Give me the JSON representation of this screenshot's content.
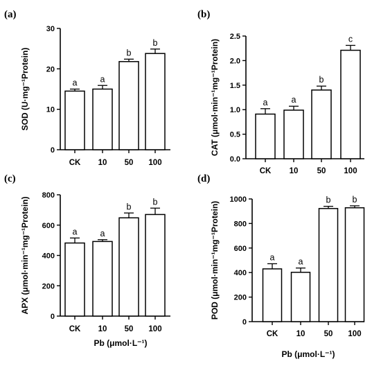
{
  "figure": {
    "xlabel": "Pb (μmol·L⁻¹)"
  },
  "chart_data": [
    {
      "panel": "(a)",
      "type": "bar",
      "categories": [
        "CK",
        "10",
        "50",
        "100"
      ],
      "values": [
        14.5,
        15.0,
        21.8,
        23.8
      ],
      "errors": [
        0.5,
        0.9,
        0.6,
        1.1
      ],
      "significance": [
        "a",
        "a",
        "b",
        "b"
      ],
      "ylabel": "SOD (U·mg⁻¹Protein)",
      "ylim": [
        0,
        30
      ],
      "yticks": [
        0,
        10,
        20,
        30
      ],
      "ytick_labels": [
        "0",
        "10",
        "20",
        "30"
      ]
    },
    {
      "panel": "(b)",
      "type": "bar",
      "categories": [
        "CK",
        "10",
        "50",
        "100"
      ],
      "values": [
        0.91,
        0.99,
        1.4,
        2.21
      ],
      "errors": [
        0.11,
        0.08,
        0.08,
        0.1
      ],
      "significance": [
        "a",
        "a",
        "b",
        "c"
      ],
      "ylabel": "CAT (μmol·min⁻¹mg⁻¹Protein)",
      "ylim": [
        0,
        2.5
      ],
      "yticks": [
        0,
        0.5,
        1.0,
        1.5,
        2.0,
        2.5
      ],
      "ytick_labels": [
        "0.0",
        "0.5",
        "1.0",
        "1.5",
        "2.0",
        "2.5"
      ]
    },
    {
      "panel": "(c)",
      "type": "bar",
      "categories": [
        "CK",
        "10",
        "50",
        "100"
      ],
      "values": [
        482,
        492,
        648,
        670
      ],
      "errors": [
        33,
        12,
        32,
        42
      ],
      "significance": [
        "a",
        "a",
        "b",
        "b"
      ],
      "ylabel": "APX (μmol·min⁻¹mg⁻¹Protein)",
      "ylim": [
        0,
        800
      ],
      "yticks": [
        0,
        200,
        400,
        600,
        800
      ],
      "ytick_labels": [
        "0",
        "200",
        "400",
        "600",
        "800"
      ]
    },
    {
      "panel": "(d)",
      "type": "bar",
      "categories": [
        "CK",
        "10",
        "50",
        "100"
      ],
      "values": [
        430,
        402,
        922,
        928
      ],
      "errors": [
        42,
        35,
        18,
        16
      ],
      "significance": [
        "a",
        "a",
        "b",
        "b"
      ],
      "ylabel": "POD (μmol·min⁻¹mg⁻¹Protein)",
      "ylim": [
        0,
        1000
      ],
      "yticks": [
        0,
        200,
        400,
        600,
        800,
        1000
      ],
      "ytick_labels": [
        "0",
        "200",
        "400",
        "600",
        "800",
        "1000"
      ]
    }
  ]
}
